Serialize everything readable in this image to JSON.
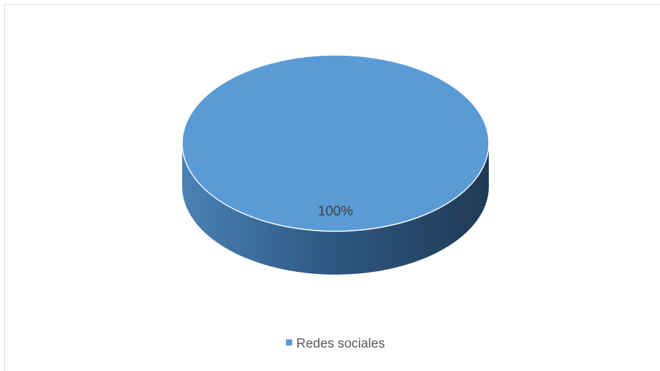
{
  "chart_data": {
    "type": "pie",
    "title": "",
    "categories": [
      "Redes sociales"
    ],
    "values": [
      1.0
    ],
    "data_labels": [
      "100%"
    ],
    "legend": {
      "entries": [
        "Redes sociales"
      ],
      "placement": "bottom"
    },
    "colors": {
      "slice": "#5b9bd5",
      "side_light": "#4a82b6",
      "side_dark": "#1f3a55",
      "edge": "#ffffff",
      "label": "#404040",
      "legend_text": "#595959",
      "frame": "#d9d9d9"
    },
    "style": "3d"
  }
}
